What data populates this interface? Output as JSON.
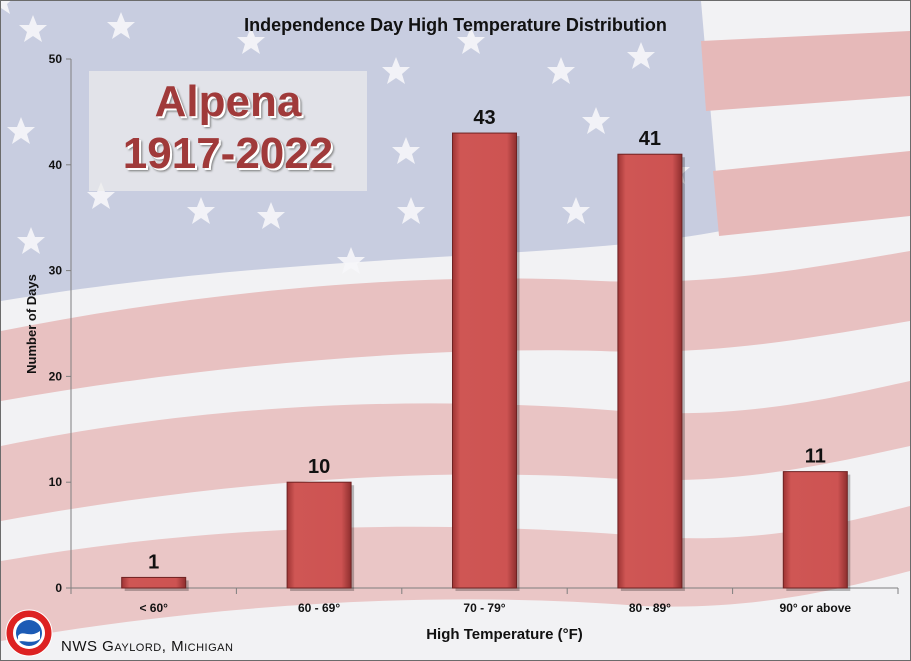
{
  "chart_data": {
    "type": "bar",
    "title": "Independence Day High Temperature Distribution",
    "xlabel": "High Temperature (°F)",
    "ylabel": "Number of Days",
    "categories": [
      "< 60°",
      "60 - 69°",
      "70 - 79°",
      "80 - 89°",
      "90° or above"
    ],
    "values": [
      1,
      10,
      43,
      41,
      11
    ],
    "ylim": [
      0,
      50
    ],
    "yticks": [
      0,
      10,
      20,
      30,
      40,
      50
    ],
    "bar_color": "#cd5352",
    "grid": false,
    "legend": "none"
  },
  "overlay": {
    "station": "Alpena",
    "period": "1917-2022",
    "color": "#a03a3a"
  },
  "footer": {
    "office": "NWS Gaylord, Michigan"
  }
}
